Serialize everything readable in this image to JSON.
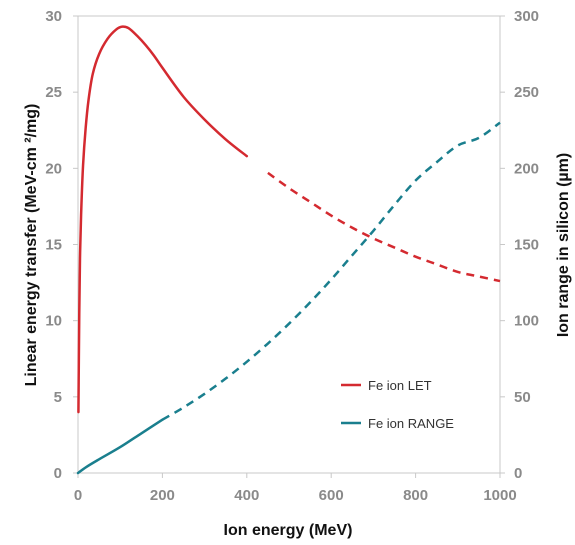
{
  "chart_data": {
    "type": "line",
    "title": "",
    "xlabel": "Ion energy (MeV)",
    "ylabel_left": "Linear energy transfer (MeV-cm ²/mg)",
    "ylabel_right": "Ion range in silicon (µm)",
    "xlim": [
      0,
      1000
    ],
    "ylim_left": [
      0,
      30
    ],
    "ylim_right": [
      0,
      300
    ],
    "x_ticks": [
      "0",
      "200",
      "400",
      "600",
      "800",
      "1000"
    ],
    "y_left_ticks": [
      "0",
      "5",
      "10",
      "15",
      "20",
      "25",
      "30"
    ],
    "y_right_ticks": [
      "0",
      "50",
      "100",
      "150",
      "200",
      "250",
      "300"
    ],
    "grid": false,
    "legend_position": "right-middle",
    "series": [
      {
        "name": "Fe ion LET",
        "axis": "left",
        "color": "#d42a30",
        "points": [
          [
            1,
            4.0
          ],
          [
            3,
            10.5
          ],
          [
            5,
            14.5
          ],
          [
            8,
            17.5
          ],
          [
            12,
            20.2
          ],
          [
            18,
            22.6
          ],
          [
            25,
            24.5
          ],
          [
            35,
            26.2
          ],
          [
            50,
            27.5
          ],
          [
            70,
            28.5
          ],
          [
            90,
            29.1
          ],
          [
            105,
            29.3
          ],
          [
            120,
            29.2
          ],
          [
            140,
            28.7
          ],
          [
            160,
            28.1
          ],
          [
            180,
            27.4
          ],
          [
            200,
            26.6
          ],
          [
            250,
            24.7
          ],
          [
            300,
            23.2
          ],
          [
            350,
            21.9
          ],
          [
            400,
            20.8
          ],
          [
            450,
            19.7
          ],
          [
            500,
            18.7
          ],
          [
            550,
            17.8
          ],
          [
            600,
            16.9
          ],
          [
            650,
            16.1
          ],
          [
            700,
            15.4
          ],
          [
            750,
            14.8
          ],
          [
            800,
            14.2
          ],
          [
            850,
            13.7
          ],
          [
            900,
            13.2
          ],
          [
            950,
            12.9
          ],
          [
            1000,
            12.6
          ]
        ],
        "dashed_from_x": 430
      },
      {
        "name": "Fe ion RANGE",
        "axis": "right",
        "color": "#1a7f8e",
        "points": [
          [
            0,
            0
          ],
          [
            20,
            4
          ],
          [
            50,
            9
          ],
          [
            100,
            17
          ],
          [
            150,
            26
          ],
          [
            200,
            35
          ],
          [
            250,
            43
          ],
          [
            300,
            52
          ],
          [
            350,
            62
          ],
          [
            400,
            73
          ],
          [
            450,
            85
          ],
          [
            500,
            98
          ],
          [
            550,
            112
          ],
          [
            600,
            127
          ],
          [
            650,
            143
          ],
          [
            700,
            159
          ],
          [
            750,
            176
          ],
          [
            800,
            192
          ],
          [
            850,
            204
          ],
          [
            900,
            215
          ],
          [
            950,
            220
          ],
          [
            1000,
            230
          ]
        ],
        "dashed_from_x": 200
      }
    ]
  }
}
